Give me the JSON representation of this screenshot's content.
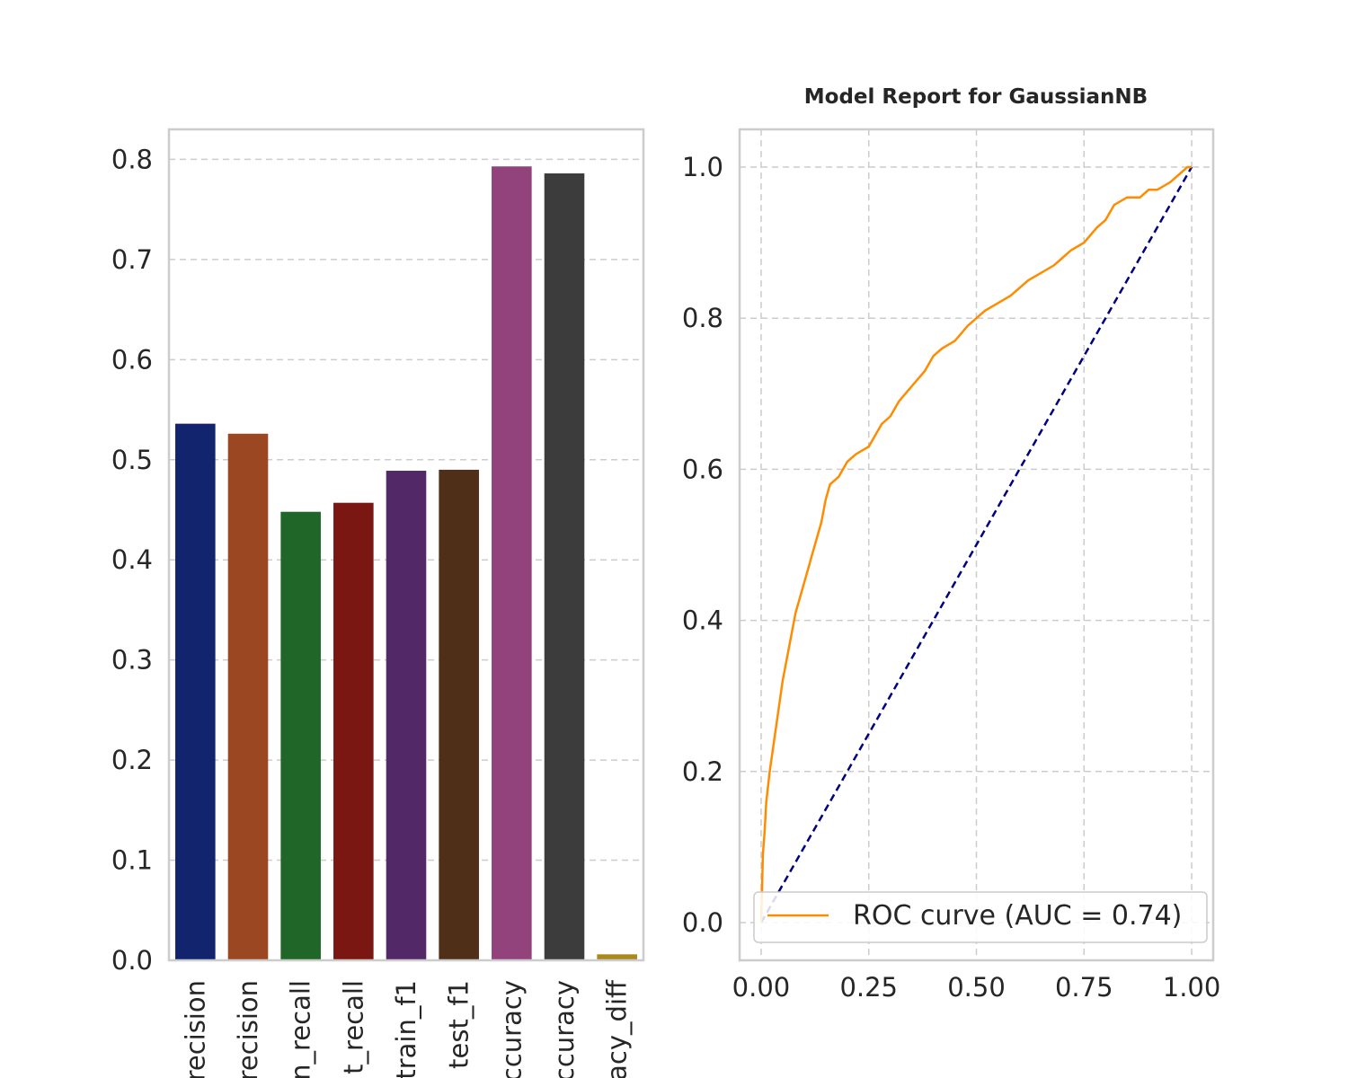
{
  "chart_data": [
    {
      "type": "bar",
      "categories": [
        "train_precision",
        "test_precision",
        "train_recall",
        "test_recall",
        "train_f1",
        "test_f1",
        "train_accuracy",
        "test_accuracy",
        "accuracy_diff"
      ],
      "visible_tick_labels": [
        "recision",
        "recision",
        "n_recall",
        "t_recall",
        "train_f1",
        "test_f1",
        "ccuracy",
        "ccuracy",
        "acy_diff"
      ],
      "values": [
        0.536,
        0.526,
        0.448,
        0.457,
        0.489,
        0.49,
        0.793,
        0.786,
        0.006
      ],
      "colors": [
        "#12246e",
        "#9a4722",
        "#1f6628",
        "#7b1713",
        "#522866",
        "#4f2f18",
        "#92437c",
        "#3c3c3c",
        "#a9891c"
      ],
      "ylim": [
        0,
        0.83
      ],
      "yticks": [
        "0.0",
        "0.1",
        "0.2",
        "0.3",
        "0.4",
        "0.5",
        "0.6",
        "0.7",
        "0.8"
      ],
      "grid": true
    },
    {
      "type": "line",
      "title": "Model Report for GaussianNB",
      "xlim": [
        -0.05,
        1.05
      ],
      "ylim": [
        -0.05,
        1.05
      ],
      "xticks": [
        "0.00",
        "0.25",
        "0.50",
        "0.75",
        "1.00"
      ],
      "yticks": [
        "0.0",
        "0.2",
        "0.4",
        "0.6",
        "0.8",
        "1.0"
      ],
      "grid": true,
      "legend": {
        "placement": "lower-right",
        "entries": [
          "ROC curve (AUC = 0.74)"
        ]
      },
      "series": [
        {
          "name": "ROC curve (AUC = 0.74)",
          "color": "#ff8c00",
          "x": [
            0,
            0.002,
            0.004,
            0.008,
            0.012,
            0.02,
            0.03,
            0.04,
            0.05,
            0.06,
            0.07,
            0.08,
            0.09,
            0.1,
            0.11,
            0.12,
            0.13,
            0.14,
            0.15,
            0.16,
            0.18,
            0.2,
            0.22,
            0.25,
            0.28,
            0.3,
            0.32,
            0.35,
            0.38,
            0.4,
            0.42,
            0.45,
            0.48,
            0.5,
            0.52,
            0.55,
            0.58,
            0.6,
            0.62,
            0.65,
            0.68,
            0.7,
            0.72,
            0.75,
            0.78,
            0.8,
            0.82,
            0.85,
            0.88,
            0.9,
            0.92,
            0.95,
            0.97,
            0.99,
            1.0
          ],
          "y": [
            0,
            0.04,
            0.09,
            0.12,
            0.16,
            0.2,
            0.24,
            0.28,
            0.32,
            0.35,
            0.38,
            0.41,
            0.43,
            0.45,
            0.47,
            0.49,
            0.51,
            0.53,
            0.56,
            0.58,
            0.59,
            0.61,
            0.62,
            0.63,
            0.66,
            0.67,
            0.69,
            0.71,
            0.73,
            0.75,
            0.76,
            0.77,
            0.79,
            0.8,
            0.81,
            0.82,
            0.83,
            0.84,
            0.85,
            0.86,
            0.87,
            0.88,
            0.89,
            0.9,
            0.92,
            0.93,
            0.95,
            0.96,
            0.96,
            0.97,
            0.97,
            0.98,
            0.99,
            1.0,
            1.0
          ]
        },
        {
          "name": "",
          "color": "#000080",
          "dashed": true,
          "x": [
            0,
            1
          ],
          "y": [
            0,
            1
          ]
        }
      ]
    }
  ]
}
